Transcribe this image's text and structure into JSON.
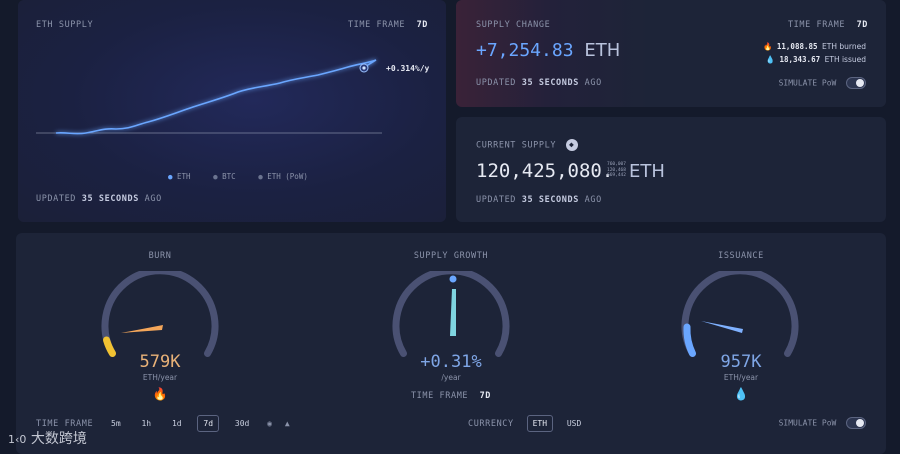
{
  "eth_supply": {
    "title": "ETH SUPPLY",
    "timeframe_label": "TIME FRAME",
    "timeframe_value": "7d",
    "annotation": "+0.314%/y",
    "legend": [
      "ETH",
      "BTC",
      "ETH (PoW)"
    ],
    "updated_prefix": "UPDATED",
    "updated_value": "35 SECONDS",
    "updated_suffix": "AGO",
    "colors": {
      "line": "#6aa6ff",
      "eth_dot": "#6aa6ff",
      "btc_dot": "#6b7490",
      "pow_dot": "#6b7490"
    }
  },
  "supply_change": {
    "title": "SUPPLY CHANGE",
    "timeframe_label": "TIME FRAME",
    "timeframe_value": "7d",
    "value": "+7,254.83",
    "unit": "ETH",
    "burned_value": "11,088.85",
    "burned_label": "ETH burned",
    "issued_value": "18,343.67",
    "issued_label": "ETH issued",
    "updated_prefix": "UPDATED",
    "updated_value": "35 SECONDS",
    "updated_suffix": "AGO",
    "simulate_label": "SIMULATE PoW",
    "burn_icon": "flame-icon",
    "issue_icon": "droplet-icon"
  },
  "current_supply": {
    "title": "CURRENT SUPPLY",
    "value": "120,425,080.",
    "decimals": [
      "760,007",
      "120,468",
      "669,442"
    ],
    "unit": "ETH",
    "updated_prefix": "UPDATED",
    "updated_value": "35 SECONDS",
    "updated_suffix": "AGO",
    "icon": "eth-logo-icon"
  },
  "gauges": {
    "burn": {
      "title": "BURN",
      "value": "579K",
      "unit": "ETH/year",
      "fraction": 0.3,
      "color": "#f4a65a",
      "icon": "flame-icon"
    },
    "growth": {
      "title": "SUPPLY GROWTH",
      "value": "+0.31%",
      "unit": "/year",
      "fraction": 0.52,
      "color": "#7fd4e0",
      "timeframe_label": "TIME FRAME",
      "timeframe_value": "7d"
    },
    "issuance": {
      "title": "ISSUANCE",
      "value": "957K",
      "unit": "ETH/year",
      "fraction": 0.42,
      "color": "#6aa6ff",
      "icon": "droplet-icon"
    }
  },
  "controls": {
    "timeframe_label": "TIME FRAME",
    "timeframes": [
      "5m",
      "1h",
      "1d",
      "7d",
      "30d"
    ],
    "active_timeframe": "7d",
    "currency_label": "CURRENCY",
    "currencies": [
      "ETH",
      "USD"
    ],
    "active_currency": "ETH",
    "simulate_label": "SIMULATE PoW"
  },
  "watermark": "大数跨境"
}
